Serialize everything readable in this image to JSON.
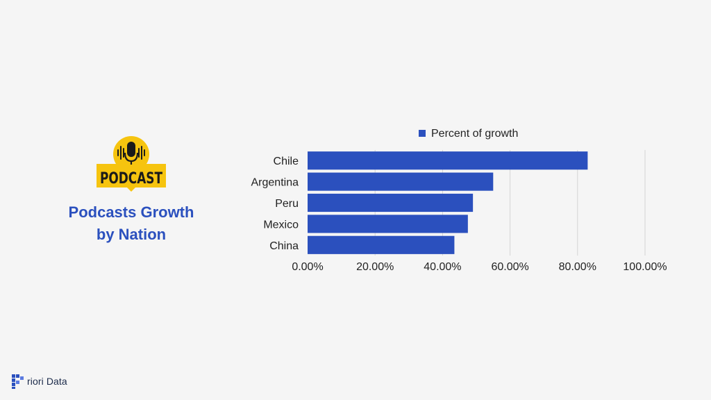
{
  "logo": {
    "label": "PODCAST"
  },
  "title": {
    "line1": "Podcasts Growth",
    "line2": "by Nation"
  },
  "brand": {
    "text": "riori Data"
  },
  "colors": {
    "bar": "#2b50be",
    "title": "#2b50be",
    "logo_yellow": "#f6c40f",
    "grid": "#d4d4d4"
  },
  "chart_data": {
    "type": "bar",
    "orientation": "horizontal",
    "title": "",
    "xlabel": "",
    "ylabel": "",
    "categories": [
      "Chile",
      "Argentina",
      "Peru",
      "Mexico",
      "China"
    ],
    "series": [
      {
        "name": "Percent of growth",
        "values": [
          0.83,
          0.55,
          0.49,
          0.475,
          0.435
        ]
      }
    ],
    "xlim": [
      0,
      1
    ],
    "ticks": [
      "0.00%",
      "20.00%",
      "40.00%",
      "60.00%",
      "80.00%",
      "100.00%"
    ],
    "grid": true,
    "legend_position": "top"
  }
}
